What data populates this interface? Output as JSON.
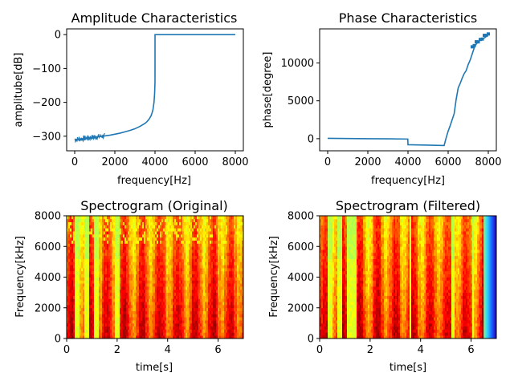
{
  "chart_data": [
    {
      "type": "line",
      "title": "Amplitude Characteristics",
      "xlabel": "frequency[Hz]",
      "ylabel": "amplitube[dB]",
      "xlim": [
        -400,
        8400
      ],
      "ylim": [
        -343,
        17
      ],
      "xticks": [
        0,
        2000,
        4000,
        6000,
        8000
      ],
      "yticks": [
        0,
        -100,
        -200,
        -300
      ],
      "color": "#1f77b4",
      "x": [
        0,
        250,
        500,
        750,
        1000,
        1250,
        1500,
        1750,
        2000,
        2250,
        2500,
        2750,
        3000,
        3250,
        3500,
        3600,
        3700,
        3800,
        3850,
        3900,
        3950,
        3980,
        4000,
        4001,
        5000,
        6000,
        7000,
        8000
      ],
      "y": [
        -310,
        -309,
        -307,
        -305,
        -303,
        -301,
        -299,
        -297,
        -294,
        -291,
        -287,
        -283,
        -278,
        -271,
        -262,
        -257,
        -250,
        -240,
        -232,
        -221,
        -200,
        -175,
        -140,
        0,
        0,
        0,
        0,
        0
      ]
    },
    {
      "type": "line",
      "title": "Phase Characteristics",
      "xlabel": "frequency[Hz]",
      "ylabel": "phase[degree]",
      "xlim": [
        -400,
        8400
      ],
      "ylim": [
        -1600,
        14500
      ],
      "xticks": [
        0,
        2000,
        4000,
        6000,
        8000
      ],
      "yticks": [
        0,
        5000,
        10000
      ],
      "color": "#1f77b4",
      "x": [
        0,
        1000,
        2000,
        3000,
        3990,
        4000,
        5000,
        5800,
        5900,
        6000,
        6100,
        6200,
        6300,
        6400,
        6500,
        6600,
        6700,
        6800,
        6900,
        7000,
        7100,
        7200,
        7300,
        7400,
        7500,
        7600,
        7700,
        7800,
        7900,
        8000
      ],
      "y": [
        50,
        20,
        0,
        -20,
        -50,
        -800,
        -850,
        -900,
        100,
        1000,
        1700,
        2500,
        3300,
        5200,
        6700,
        7300,
        8000,
        8600,
        9000,
        9800,
        10400,
        11200,
        12000,
        12500,
        12800,
        13000,
        13100,
        13300,
        13500,
        13700
      ]
    },
    {
      "type": "heatmap",
      "title": "Spectrogram (Original)",
      "xlabel": "time[s]",
      "ylabel": "Frequency[kHz]",
      "xlim": [
        0,
        7
      ],
      "ylim": [
        0,
        8000
      ],
      "xticks": [
        0,
        2,
        4,
        6
      ],
      "yticks": [
        0,
        2000,
        4000,
        6000,
        8000
      ],
      "colormap": "jet",
      "quiet_segments_s": [
        [
          0.3,
          0.45
        ],
        [
          0.7,
          0.85
        ],
        [
          1.05,
          1.25
        ],
        [
          1.9,
          2.05
        ]
      ]
    },
    {
      "type": "heatmap",
      "title": "Spectrogram (Filtered)",
      "xlabel": "time[s]",
      "ylabel": "Frequency[kHz]",
      "xlim": [
        0,
        7
      ],
      "ylim": [
        0,
        8000
      ],
      "xticks": [
        0,
        2,
        4,
        6
      ],
      "yticks": [
        0,
        2000,
        4000,
        6000,
        8000
      ],
      "colormap": "jet",
      "quiet_segments_s": [
        [
          0.3,
          0.45
        ],
        [
          0.7,
          0.85
        ],
        [
          1.05,
          1.45
        ],
        [
          3.5,
          3.6
        ],
        [
          5.2,
          5.3
        ],
        [
          6.0,
          6.05
        ],
        [
          6.5,
          7.0
        ]
      ]
    }
  ]
}
